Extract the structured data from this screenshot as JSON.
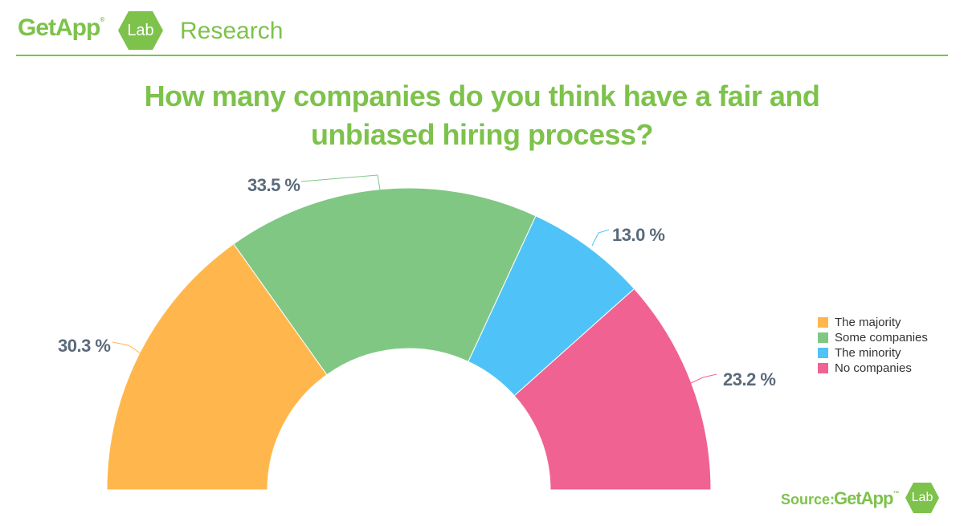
{
  "header": {
    "brand": "GetApp",
    "brand_mark": "®",
    "lab": "Lab",
    "section": "Research"
  },
  "colors": {
    "brand_green": "#7dc24b",
    "label_gray": "#5a6a7a",
    "white": "#ffffff"
  },
  "chart_data": {
    "type": "pie",
    "subtype": "semi-donut",
    "title": "How many companies do you think have a fair and unbiased hiring process?",
    "categories": [
      "The majority",
      "Some companies",
      "The minority",
      "No companies"
    ],
    "values": [
      30.3,
      33.5,
      13.0,
      23.2
    ],
    "data_labels": [
      "30.3 %",
      "33.5 %",
      "13.0 %",
      "23.2 %"
    ],
    "colors": [
      "#ffb74d",
      "#81c784",
      "#4fc3f7",
      "#f06292"
    ],
    "legend_position": "right"
  },
  "footer": {
    "source_label": "Source:",
    "brand": "GetApp",
    "brand_mark": "™",
    "lab": "Lab"
  }
}
